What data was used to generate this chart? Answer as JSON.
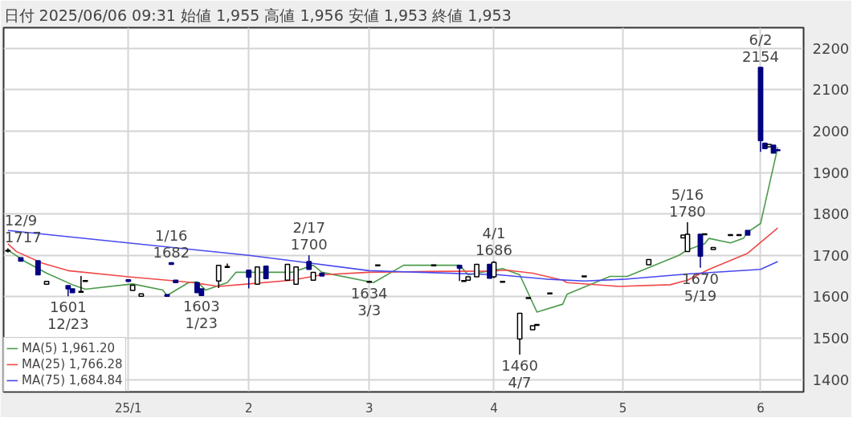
{
  "chart_data": {
    "type": "candlestick",
    "title": "日付 2025/06/06 09:31 始値 1,955 高値 1,956 安値 1,953 終値 1,953",
    "x": [
      "2024-12-09",
      "2024-12-12",
      "2024-12-16",
      "2024-12-18",
      "2024-12-23",
      "2024-12-24",
      "2024-12-26",
      "2024-12-27",
      "2025-01-06",
      "2025-01-07",
      "2025-01-09",
      "2025-01-15",
      "2025-01-16",
      "2025-01-17",
      "2025-01-22",
      "2025-01-23",
      "2025-01-27",
      "2025-01-29",
      "2025-02-03",
      "2025-02-05",
      "2025-02-07",
      "2025-02-12",
      "2025-02-14",
      "2025-02-17",
      "2025-02-18",
      "2025-02-20",
      "2025-03-03",
      "2025-03-05",
      "2025-03-18",
      "2025-03-24",
      "2025-03-25",
      "2025-03-26",
      "2025-03-28",
      "2025-03-31",
      "2025-04-01",
      "2025-04-03",
      "2025-04-07",
      "2025-04-09",
      "2025-04-10",
      "2025-04-11",
      "2025-04-14",
      "2025-04-22",
      "2025-05-07",
      "2025-05-15",
      "2025-05-16",
      "2025-05-19",
      "2025-05-20",
      "2025-05-22",
      "2025-05-26",
      "2025-05-28",
      "2025-05-30",
      "2025-06-02",
      "2025-06-03",
      "2025-06-04",
      "2025-06-05",
      "2025-06-06"
    ],
    "ohlc": [
      [
        1710,
        1717,
        1707,
        1712
      ],
      [
        1694,
        1694,
        1686,
        1686
      ],
      [
        1687,
        1687,
        1653,
        1653
      ],
      [
        1630,
        1637,
        1630,
        1637
      ],
      [
        1627,
        1627,
        1601,
        1619
      ],
      [
        1619,
        1619,
        1610,
        1610
      ],
      [
        1612,
        1650,
        1612,
        1612
      ],
      [
        1638,
        1638,
        1638,
        1638
      ],
      [
        1641,
        1641,
        1637,
        1637
      ],
      [
        1615,
        1628,
        1615,
        1628
      ],
      [
        1601,
        1607,
        1601,
        1607
      ],
      [
        1605,
        1605,
        1601,
        1601
      ],
      [
        1682,
        1682,
        1678,
        1678
      ],
      [
        1640,
        1640,
        1634,
        1634
      ],
      [
        1634,
        1634,
        1610,
        1610
      ],
      [
        1619,
        1619,
        1603,
        1603
      ],
      [
        1638,
        1676,
        1621,
        1676
      ],
      [
        1672,
        1680,
        1672,
        1672
      ],
      [
        1664,
        1664,
        1620,
        1647
      ],
      [
        1630,
        1672,
        1630,
        1672
      ],
      [
        1674,
        1674,
        1644,
        1644
      ],
      [
        1640,
        1678,
        1640,
        1678
      ],
      [
        1630,
        1672,
        1630,
        1672
      ],
      [
        1685,
        1700,
        1666,
        1666
      ],
      [
        1640,
        1659,
        1640,
        1659
      ],
      [
        1657,
        1657,
        1650,
        1650
      ],
      [
        1636,
        1636,
        1634,
        1636
      ],
      [
        1676,
        1676,
        1676,
        1676
      ],
      [
        1676,
        1676,
        1676,
        1676
      ],
      [
        1676,
        1676,
        1638,
        1669
      ],
      [
        1638,
        1638,
        1638,
        1638
      ],
      [
        1640,
        1648,
        1640,
        1648
      ],
      [
        1648,
        1678,
        1648,
        1678
      ],
      [
        1678,
        1678,
        1645,
        1645
      ],
      [
        1648,
        1686,
        1645,
        1683
      ],
      [
        1636,
        1636,
        1636,
        1636
      ],
      [
        1498,
        1560,
        1460,
        1560
      ],
      [
        1597,
        1597,
        1597,
        1597
      ],
      [
        1520,
        1530,
        1520,
        1530
      ],
      [
        1532,
        1532,
        1532,
        1532
      ],
      [
        1608,
        1608,
        1608,
        1608
      ],
      [
        1649,
        1649,
        1649,
        1649
      ],
      [
        1677,
        1690,
        1677,
        1690
      ],
      [
        1742,
        1749,
        1742,
        1749
      ],
      [
        1709,
        1780,
        1709,
        1751
      ],
      [
        1751,
        1751,
        1670,
        1698
      ],
      [
        1751,
        1751,
        1751,
        1751
      ],
      [
        1714,
        1719,
        1714,
        1719
      ],
      [
        1749,
        1749,
        1749,
        1749
      ],
      [
        1749,
        1749,
        1749,
        1749
      ],
      [
        1760,
        1760,
        1749,
        1749
      ],
      [
        2154,
        2154,
        1950,
        1977
      ],
      [
        1971,
        1971,
        1958,
        1958
      ],
      [
        1962,
        1968,
        1962,
        1968
      ],
      [
        1966,
        1966,
        1947,
        1947
      ],
      [
        1955,
        1956,
        1953,
        1953
      ]
    ],
    "colors": [
      "#ffffff",
      "#000080",
      "#000080",
      "#ffffff",
      "#000080",
      "#000080",
      "#000000",
      "#000000",
      "#000080",
      "#ffffff",
      "#ffffff",
      "#000080",
      "#000080",
      "#000080",
      "#000080",
      "#000080",
      "#ffffff",
      "#000000",
      "#000080",
      "#ffffff",
      "#000080",
      "#ffffff",
      "#ffffff",
      "#000080",
      "#ffffff",
      "#000080",
      "#000000",
      "#000000",
      "#000000",
      "#000080",
      "#000000",
      "#ffffff",
      "#ffffff",
      "#000080",
      "#ffffff",
      "#000000",
      "#ffffff",
      "#000000",
      "#ffffff",
      "#000000",
      "#000000",
      "#000000",
      "#ffffff",
      "#ffffff",
      "#ffffff",
      "#000080",
      "#000000",
      "#ffffff",
      "#000000",
      "#000000",
      "#000080",
      "#000080",
      "#000080",
      "#ffffff",
      "#000080",
      "#000080"
    ],
    "series": [
      {
        "name": "MA(5) 1,961.20",
        "type": "line",
        "color": "#4c9a4c",
        "x": [
          "2024-12-09",
          "2024-12-13",
          "2024-12-18",
          "2024-12-24",
          "2024-12-27",
          "2025-01-07",
          "2025-01-14",
          "2025-01-15",
          "2025-01-20",
          "2025-01-22",
          "2025-01-24",
          "2025-01-29",
          "2025-01-31",
          "2025-02-04",
          "2025-02-13",
          "2025-02-18",
          "2025-02-20",
          "2025-03-04",
          "2025-03-11",
          "2025-03-24",
          "2025-03-26",
          "2025-04-03",
          "2025-04-07",
          "2025-04-11",
          "2025-04-17",
          "2025-04-18",
          "2025-04-28",
          "2025-05-02",
          "2025-05-14",
          "2025-05-16",
          "2025-05-20",
          "2025-05-21",
          "2025-05-26",
          "2025-05-29",
          "2025-05-30",
          "2025-06-02",
          "2025-06-06"
        ],
        "values": [
          1713,
          1685,
          1657,
          1629,
          1618,
          1631,
          1616,
          1603,
          1634,
          1636,
          1616,
          1634,
          1659,
          1659,
          1659,
          1676,
          1659,
          1634,
          1676,
          1676,
          1653,
          1668,
          1653,
          1563,
          1582,
          1606,
          1649,
          1649,
          1700,
          1713,
          1728,
          1741,
          1730,
          1741,
          1756,
          1777,
          1961
        ]
      },
      {
        "name": "MA(25) 1,766.28",
        "type": "line",
        "color": "#f04848",
        "x": [
          "2024-12-09",
          "2024-12-11",
          "2024-12-17",
          "2024-12-23",
          "2025-01-06",
          "2025-01-15",
          "2025-01-21",
          "2025-01-27",
          "2025-02-03",
          "2025-02-13",
          "2025-02-20",
          "2025-03-03",
          "2025-03-17",
          "2025-03-31",
          "2025-04-04",
          "2025-04-10",
          "2025-04-17",
          "2025-04-18",
          "2025-04-30",
          "2025-05-12",
          "2025-05-16",
          "2025-05-21",
          "2025-05-30",
          "2025-06-06"
        ],
        "values": [
          1728,
          1709,
          1681,
          1663,
          1648,
          1640,
          1634,
          1625,
          1631,
          1640,
          1653,
          1659,
          1661,
          1662,
          1664,
          1657,
          1640,
          1634,
          1625,
          1629,
          1640,
          1666,
          1705,
          1766
        ]
      },
      {
        "name": "MA(75) 1,684.84",
        "type": "line",
        "color": "#4848f0",
        "x": [
          "2024-12-09",
          "2025-02-03",
          "2025-02-13",
          "2025-03-03",
          "2025-04-02",
          "2025-04-14",
          "2025-04-22",
          "2025-05-01",
          "2025-05-16",
          "2025-06-02",
          "2025-06-06"
        ],
        "values": [
          1760,
          1700,
          1687,
          1663,
          1653,
          1642,
          1638,
          1642,
          1655,
          1666,
          1685
        ]
      }
    ],
    "xlim": [
      "2024-12-08",
      "2025-06-12"
    ],
    "ylim": [
      1370,
      2250
    ],
    "yticks": [
      1400,
      1500,
      1600,
      1700,
      1800,
      1900,
      2000,
      2100,
      2200
    ],
    "xticks": [
      {
        "value": "2025-01-06",
        "label": "25/1"
      },
      {
        "value": "2025-02-03",
        "label": "2"
      },
      {
        "value": "2025-03-03",
        "label": "3"
      },
      {
        "value": "2025-04-01",
        "label": "4"
      },
      {
        "value": "2025-05-01",
        "label": "5"
      },
      {
        "value": "2025-06-02",
        "label": "6"
      }
    ],
    "grid": true,
    "legend": "bottom left",
    "annotations": [
      {
        "text": "12/9\n1717",
        "x": "2024-12-09",
        "y": 1717
      },
      {
        "text": "1601\n12/23",
        "x": "2024-12-23",
        "y": 1601
      },
      {
        "text": "1/16\n1682",
        "x": "2025-01-16",
        "y": 1682
      },
      {
        "text": "1603\n1/23",
        "x": "2025-01-23",
        "y": 1603
      },
      {
        "text": "2/17\n1700",
        "x": "2025-02-17",
        "y": 1700
      },
      {
        "text": "1634\n3/3",
        "x": "2025-03-03",
        "y": 1634
      },
      {
        "text": "4/1\n1686",
        "x": "2025-04-01",
        "y": 1686
      },
      {
        "text": "1460\n4/7",
        "x": "2025-04-07",
        "y": 1460
      },
      {
        "text": "5/16\n1780",
        "x": "2025-05-16",
        "y": 1780
      },
      {
        "text": "1670\n5/19",
        "x": "2025-05-19",
        "y": 1670
      },
      {
        "text": "6/2\n2154",
        "x": "2025-06-02",
        "y": 2154
      }
    ]
  }
}
